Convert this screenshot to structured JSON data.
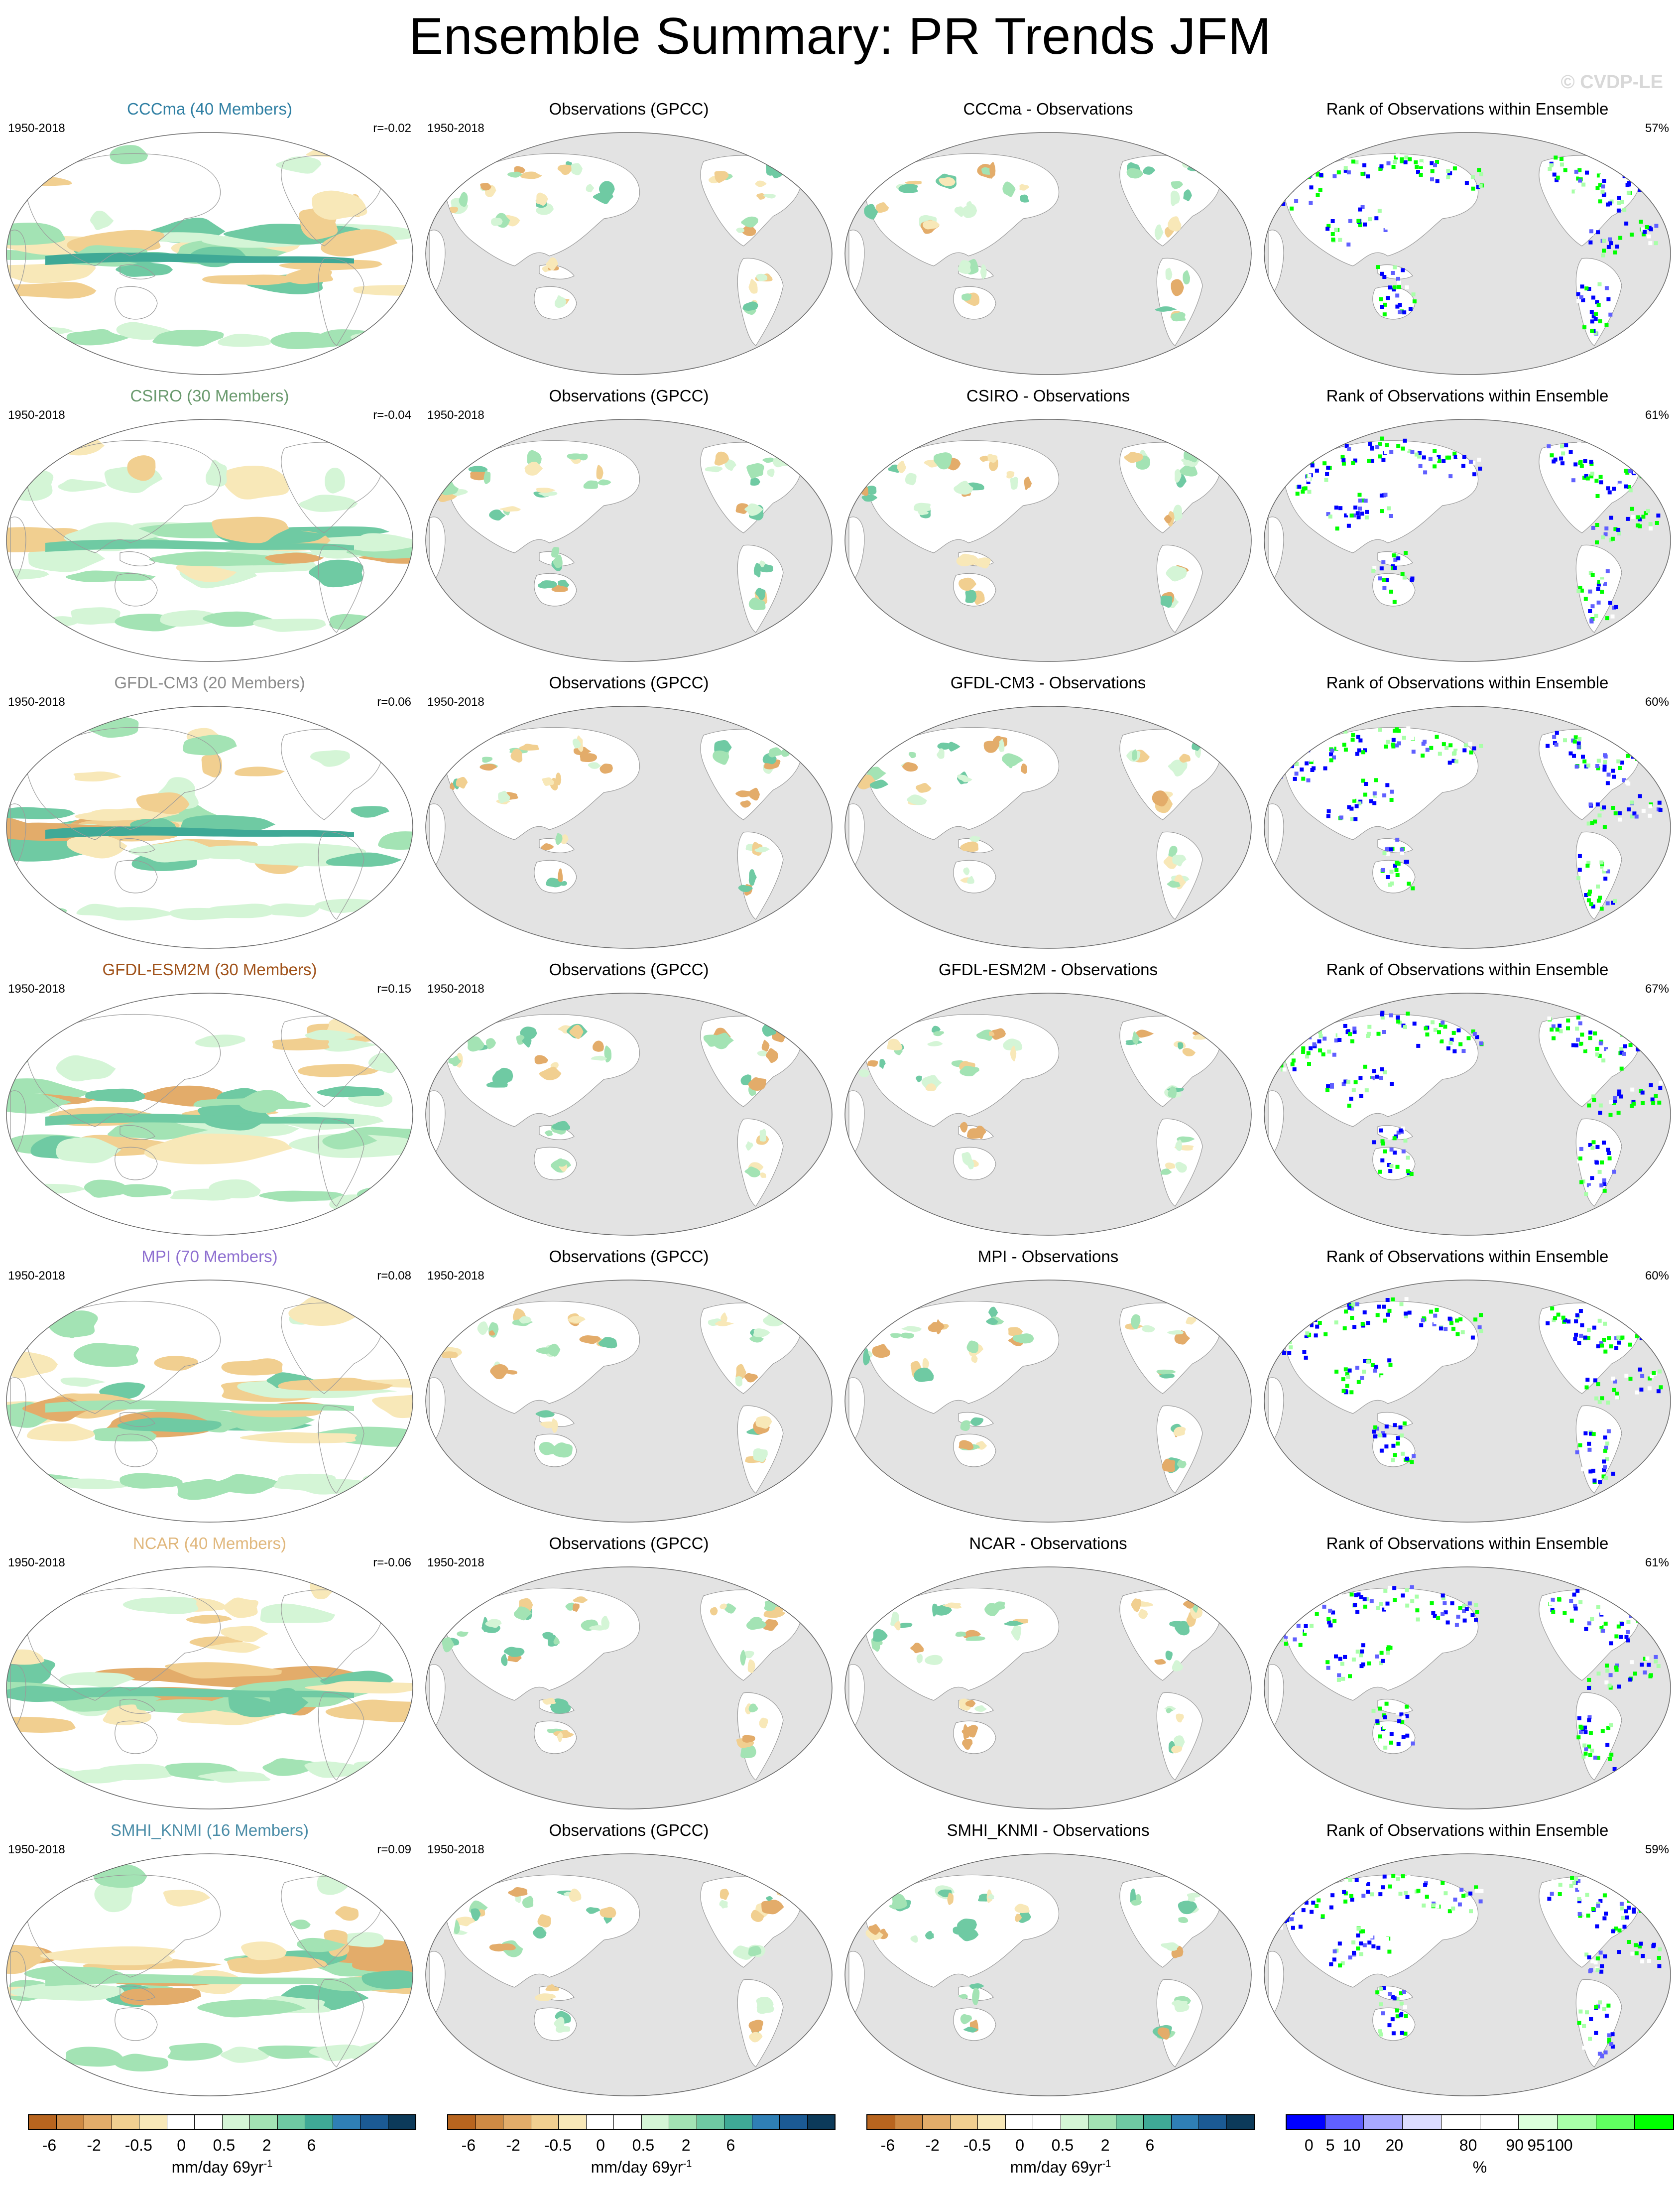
{
  "title": "Ensemble Summary: PR Trends JFM",
  "watermark": "© CVDP-LE",
  "period": "1950-2018",
  "obs_title": "Observations (GPCC)",
  "rank_title": "Rank of Observations within Ensemble",
  "rows": [
    {
      "model_title": "CCCma (40 Members)",
      "color": "#2f7fa3",
      "r": "r=-0.02",
      "diff_title": "CCCma - Observations",
      "rank_pct": "57%"
    },
    {
      "model_title": "CSIRO (30 Members)",
      "color": "#6a9a6e",
      "r": "r=-0.04",
      "diff_title": "CSIRO - Observations",
      "rank_pct": "61%"
    },
    {
      "model_title": "GFDL-CM3 (20 Members)",
      "color": "#8c8c8c",
      "r": "r=0.06",
      "diff_title": "GFDL-CM3 - Observations",
      "rank_pct": "60%"
    },
    {
      "model_title": "GFDL-ESM2M (30 Members)",
      "color": "#a0521a",
      "r": "r=0.15",
      "diff_title": "GFDL-ESM2M - Observations",
      "rank_pct": "67%"
    },
    {
      "model_title": "MPI (70 Members)",
      "color": "#8e6fd0",
      "r": "r=0.08",
      "diff_title": "MPI - Observations",
      "rank_pct": "60%"
    },
    {
      "model_title": "NCAR (40 Members)",
      "color": "#e0b77c",
      "r": "r=-0.06",
      "diff_title": "NCAR - Observations",
      "rank_pct": "61%"
    },
    {
      "model_title": "SMHI_KNMI (16 Members)",
      "color": "#4b8da8",
      "r": "r=0.09",
      "diff_title": "SMHI_KNMI - Observations",
      "rank_pct": "59%"
    }
  ],
  "colorbar_trend": {
    "colors": [
      "#b8651f",
      "#cf8a44",
      "#e3ac6a",
      "#f1cf90",
      "#f8e8b8",
      "#ffffff",
      "#ffffff",
      "#d4f5d6",
      "#a3e3b4",
      "#6fcaa3",
      "#3fa996",
      "#2f7fb5",
      "#1b5a94",
      "#0c3a5a"
    ],
    "labels": [
      "-6",
      "-2",
      "-0.5",
      "0",
      "0.5",
      "2",
      "6"
    ],
    "unit": "mm/day 69yr",
    "unit_sup": "-1"
  },
  "colorbar_rank": {
    "colors": [
      "#0000ff",
      "#6060ff",
      "#a8a8ff",
      "#dcdcff",
      "#ffffff",
      "#ffffff",
      "#dcffdc",
      "#a8ffa8",
      "#60ff60",
      "#00ff00"
    ],
    "labels": [
      "0",
      "5",
      "10",
      "20",
      "80",
      "90",
      "95",
      "100"
    ],
    "unit": "%"
  }
}
